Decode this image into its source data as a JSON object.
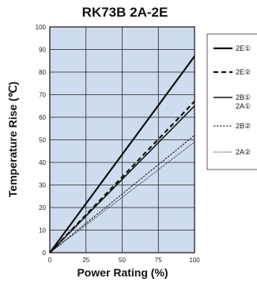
{
  "chart_data": {
    "type": "line",
    "title": "RK73B 2A-2E",
    "xlabel": "Power Rating (%)",
    "ylabel": "Temperature Rise (℃)",
    "xlim": [
      0,
      100
    ],
    "ylim": [
      0,
      100
    ],
    "x_ticks": [
      "0",
      "25",
      "50",
      "75",
      "100"
    ],
    "y_ticks": [
      "0",
      "10",
      "20",
      "30",
      "40",
      "50",
      "60",
      "70",
      "80",
      "90",
      "100"
    ],
    "grid": true,
    "legend_position": "right",
    "plot_background": "#cfdcef",
    "series": [
      {
        "name": "2E①",
        "style": "solid-thick",
        "color": "#111111",
        "x": [
          0,
          100
        ],
        "y": [
          0,
          87
        ]
      },
      {
        "name": "2E②",
        "style": "dashed-thick",
        "color": "#111111",
        "x": [
          0,
          100
        ],
        "y": [
          0,
          67
        ]
      },
      {
        "name": "2B①\n2A①",
        "style": "solid",
        "color": "#111111",
        "x": [
          0,
          100
        ],
        "y": [
          0,
          65
        ]
      },
      {
        "name": "2B②",
        "style": "dashed-thin",
        "color": "#111111",
        "x": [
          0,
          100
        ],
        "y": [
          0,
          52
        ]
      },
      {
        "name": "2A②",
        "style": "dotted-thin",
        "color": "#111111",
        "x": [
          0,
          100
        ],
        "y": [
          0,
          49
        ]
      }
    ]
  }
}
